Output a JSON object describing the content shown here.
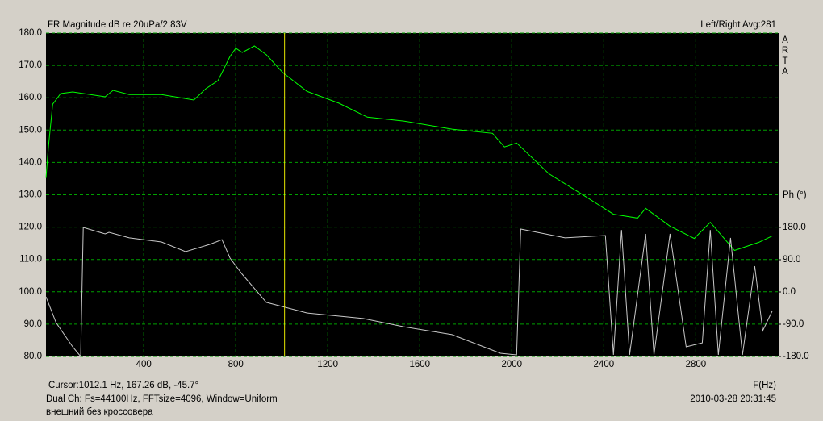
{
  "chart_data": {
    "type": "line",
    "title": "FR Magnitude dB re 20uPa/2.83V",
    "info": "Left/Right  Avg:281",
    "watermark": "ARTA",
    "y2_label": "Ph (°)",
    "x_label": "F(Hz)",
    "cursor_text": "Cursor:1012.1 Hz, 167.26 dB, -45.7°",
    "cursor": {
      "x": 1012.1,
      "color": "#e8e800"
    },
    "footer": "Dual Ch: Fs=44100Hz, FFTsize=4096, Window=Uniform",
    "note": "внешний без кроссовера",
    "timestamp": "2010-03-28  20:31:45",
    "grid": true,
    "grid_color": "#00a000",
    "xlim": [
      -25,
      3160
    ],
    "xticks": [
      400,
      800,
      1200,
      1600,
      2000,
      2400,
      2800
    ],
    "ylim": [
      80,
      180
    ],
    "yticks": [
      {
        "value": 80,
        "label": "80.0"
      },
      {
        "value": 90,
        "label": "90.0"
      },
      {
        "value": 100,
        "label": "100.0"
      },
      {
        "value": 110,
        "label": "110.0"
      },
      {
        "value": 120,
        "label": "120.0"
      },
      {
        "value": 130,
        "label": "130.0"
      },
      {
        "value": 140,
        "label": "140.0"
      },
      {
        "value": 150,
        "label": "150.0"
      },
      {
        "value": 160,
        "label": "160.0"
      },
      {
        "value": 170,
        "label": "170.0"
      },
      {
        "value": 180,
        "label": "180.0"
      }
    ],
    "y2lim": [
      -180,
      722.25
    ],
    "y2ticks": [
      {
        "value": -180,
        "label": "-180.0"
      },
      {
        "value": -90,
        "label": "-90.0"
      },
      {
        "value": 0,
        "label": "0.0"
      },
      {
        "value": 90,
        "label": "90.0"
      },
      {
        "value": 180,
        "label": "180.0"
      }
    ],
    "series": [
      {
        "color": "#00ff00",
        "x": [
          -25,
          -14,
          4,
          39,
          91,
          232,
          267,
          337,
          477,
          618,
          670,
          723,
          775,
          800,
          828,
          881,
          933,
          1004,
          1109,
          1249,
          1372,
          1530,
          1740,
          1916,
          1968,
          2021,
          2161,
          2302,
          2442,
          2547,
          2582,
          2688,
          2793,
          2863,
          2968,
          3074,
          3133
        ],
        "values": [
          135.2,
          145,
          158,
          161.3,
          161.8,
          160.3,
          162.3,
          161,
          161,
          159.3,
          162.8,
          165.3,
          172.8,
          175.3,
          174,
          176,
          173.3,
          167.8,
          162,
          158.3,
          154,
          152.8,
          150.3,
          149,
          144.8,
          146,
          136.5,
          130.3,
          124,
          122.8,
          125.8,
          120.3,
          116.5,
          121.5,
          112.8,
          115.3,
          117.3
        ]
      },
      {
        "color": "#c8c8c8",
        "axis": "y2",
        "x": [
          -25,
          19,
          91,
          126,
          137,
          232,
          249,
          337,
          477,
          582,
          688,
          740,
          775,
          828,
          933,
          1109,
          1354,
          1530,
          1740,
          1951,
          2021,
          2039,
          2232,
          2407,
          2442,
          2477,
          2512,
          2582,
          2618,
          2688,
          2758,
          2828,
          2863,
          2898,
          2951,
          3003,
          3056,
          3091,
          3133
        ],
        "values": [
          -13.5,
          -85.5,
          -153,
          -180,
          180,
          162,
          166.5,
          151,
          139.5,
          112.5,
          133,
          146,
          94.5,
          49.5,
          -29,
          -58.5,
          -74,
          -97,
          -119,
          -171,
          -175.5,
          175.5,
          151,
          157.5,
          -175.5,
          173,
          -175.5,
          162,
          -175.5,
          162,
          -153,
          -142,
          173,
          -175.5,
          151,
          -175.5,
          72,
          -108,
          -52
        ]
      }
    ]
  }
}
